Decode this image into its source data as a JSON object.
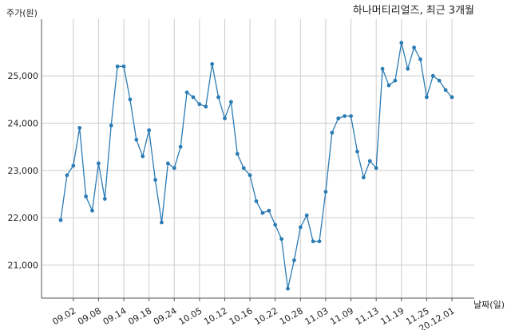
{
  "chart_data": {
    "type": "line",
    "title": "하나머티리얼즈, 최근 3개월",
    "ylabel": "주가(원)",
    "xlabel": "날짜(일)",
    "ylim": [
      20300,
      26200
    ],
    "yticks": [
      21000,
      22000,
      23000,
      24000,
      25000
    ],
    "ytick_labels": [
      "21,000",
      "22,000",
      "23,000",
      "24,000",
      "25,000"
    ],
    "xticks": [
      {
        "index": 2,
        "label": "09.02"
      },
      {
        "index": 6,
        "label": "09.08"
      },
      {
        "index": 10,
        "label": "09.14"
      },
      {
        "index": 14,
        "label": "09.18"
      },
      {
        "index": 18,
        "label": "09.24"
      },
      {
        "index": 22,
        "label": "10.05"
      },
      {
        "index": 26,
        "label": "10.12"
      },
      {
        "index": 30,
        "label": "10.16"
      },
      {
        "index": 34,
        "label": "10.22"
      },
      {
        "index": 38,
        "label": "10.28"
      },
      {
        "index": 42,
        "label": "11.03"
      },
      {
        "index": 46,
        "label": "11.09"
      },
      {
        "index": 50,
        "label": "11.13"
      },
      {
        "index": 54,
        "label": "11.19"
      },
      {
        "index": 58,
        "label": "11.25"
      },
      {
        "index": 62,
        "label": "20.12.01"
      }
    ],
    "grid": true,
    "color": "#2b7bb5",
    "series": [
      {
        "values": [
          21950,
          22900,
          23100,
          23900,
          22450,
          22150,
          23150,
          22400,
          23950,
          25200,
          25200,
          24500,
          23650,
          23300,
          23850,
          22800,
          21900,
          23150,
          23050,
          23500,
          24650,
          24550,
          24400,
          24350,
          25250,
          24550,
          24100,
          24450,
          23350,
          23050,
          22900,
          22350,
          22100,
          22150,
          21850,
          21550,
          20500,
          21100,
          21800,
          22050,
          21500,
          21500,
          22550,
          23800,
          24100,
          24150,
          24150,
          23400,
          22850,
          23200,
          23050,
          25150,
          24800,
          24900,
          25700,
          25150,
          25600,
          25350,
          24550,
          25000,
          24900,
          24700,
          24550
        ]
      }
    ]
  }
}
